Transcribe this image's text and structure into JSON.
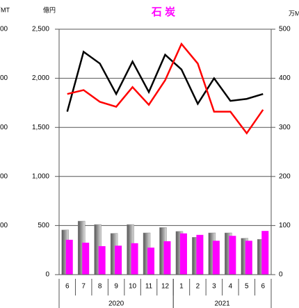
{
  "chart_data": {
    "type": "combo",
    "title": "石 炭",
    "y_label": "億円",
    "y2_label": "万M",
    "y3_label": "万MT",
    "y3_tick_labels": [
      "00",
      "00",
      "00",
      "00",
      "00"
    ],
    "categories": [
      "6",
      "7",
      "8",
      "9",
      "10",
      "11",
      "12",
      "1",
      "2",
      "3",
      "4",
      "5",
      "6"
    ],
    "x_groups": [
      {
        "label": "2020",
        "count": 7
      },
      {
        "label": "2021",
        "count": 6
      }
    ],
    "ylim": [
      0,
      2500
    ],
    "yticks": [
      0,
      {
        "value": 500,
        "label": "500"
      },
      {
        "value": 1000,
        "label": "1,000"
      },
      {
        "value": 1500,
        "label": "1,500"
      },
      {
        "value": 2000,
        "label": "2,000"
      },
      {
        "value": 2500,
        "label": "2,500"
      }
    ],
    "y2lim": [
      0,
      500
    ],
    "y2ticks": [
      0,
      100,
      200,
      300,
      400,
      500
    ],
    "grid": true,
    "series": [
      {
        "kind": "bar",
        "axis": "y2",
        "color": "#8a8a8a",
        "values": [
          91,
          109,
          102,
          84,
          102,
          85,
          96,
          88,
          76,
          85,
          85,
          74,
          72
        ]
      },
      {
        "kind": "bar",
        "axis": "y2",
        "color": "#ff00ff",
        "values": [
          71,
          65,
          58,
          59,
          64,
          55,
          68,
          84,
          81,
          69,
          79,
          69,
          89
        ]
      },
      {
        "kind": "line",
        "axis": "y",
        "color": "#000000",
        "values": [
          1660,
          2270,
          2150,
          1840,
          2170,
          1860,
          2240,
          2090,
          1740,
          2000,
          1770,
          1790,
          1840
        ]
      },
      {
        "kind": "line",
        "axis": "y",
        "color": "#ff0000",
        "values": [
          1840,
          1880,
          1760,
          1710,
          1910,
          1730,
          1980,
          2350,
          2150,
          1660,
          1660,
          1440,
          1680
        ]
      }
    ]
  }
}
